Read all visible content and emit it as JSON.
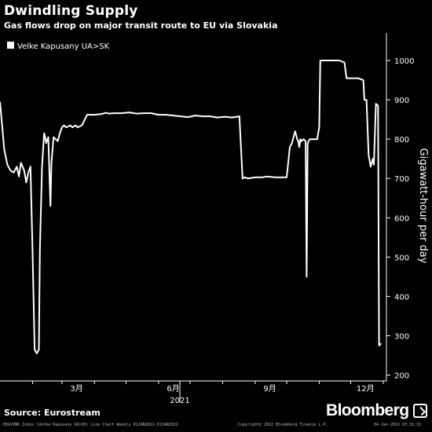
{
  "header": {
    "title": "Dwindling Supply",
    "subtitle": "Gas flows drop on major transit route to EU via Slovakia"
  },
  "footer": {
    "source": "Source: Eurostream",
    "brand": "Bloomberg",
    "fine_left": "EKGVVNK Index (Velke Kapusany UA>SK) Line Chart  Weekly 01JAN2021-01JAN2022",
    "fine_mid": "Copyright© 2022 Bloomberg Finance L.P.",
    "fine_right": "04-Jan-2022 03:31:31"
  },
  "colors": {
    "background": "#000000",
    "line": "#ffffff",
    "text": "#ffffff"
  },
  "chart_data": {
    "type": "line",
    "title": "Dwindling Supply",
    "subtitle": "Gas flows drop on major transit route to EU via Slovakia",
    "ylabel": "Gigawatt-hour per day",
    "xlabel": "",
    "year_label": "2021",
    "x_ticks": [
      "3月",
      "6月",
      "9月",
      "12月"
    ],
    "y_ticks": [
      200,
      300,
      400,
      500,
      600,
      700,
      800,
      900,
      1000
    ],
    "ylim": [
      185,
      1070
    ],
    "xlim": [
      "2021-01-01",
      "2022-01-04"
    ],
    "y_axis_side": "right",
    "grid": false,
    "legend_position": "top-left",
    "series": [
      {
        "name": "Velke Kapusany UA>SK",
        "color": "#ffffff",
        "x": [
          "2021-01-01",
          "2021-01-03",
          "2021-01-05",
          "2021-01-08",
          "2021-01-11",
          "2021-01-14",
          "2021-01-17",
          "2021-01-19",
          "2021-01-21",
          "2021-01-24",
          "2021-01-26",
          "2021-01-28",
          "2021-01-30",
          "2021-02-01",
          "2021-02-03",
          "2021-02-05",
          "2021-02-07",
          "2021-02-08",
          "2021-02-10",
          "2021-02-12",
          "2021-02-13",
          "2021-02-14",
          "2021-02-16",
          "2021-02-18",
          "2021-02-19",
          "2021-02-21",
          "2021-02-23",
          "2021-02-25",
          "2021-02-27",
          "2021-03-01",
          "2021-03-03",
          "2021-03-05",
          "2021-03-09",
          "2021-03-11",
          "2021-03-14",
          "2021-03-16",
          "2021-03-20",
          "2021-03-25",
          "2021-04-01",
          "2021-04-08",
          "2021-04-12",
          "2021-04-14",
          "2021-04-20",
          "2021-04-27",
          "2021-05-04",
          "2021-05-11",
          "2021-05-18",
          "2021-05-25",
          "2021-06-01",
          "2021-06-08",
          "2021-06-15",
          "2021-06-22",
          "2021-06-29",
          "2021-07-06",
          "2021-07-13",
          "2021-07-20",
          "2021-07-27",
          "2021-08-03",
          "2021-08-10",
          "2021-08-17",
          "2021-08-20",
          "2021-08-22",
          "2021-08-25",
          "2021-09-01",
          "2021-09-08",
          "2021-09-12",
          "2021-09-20",
          "2021-09-28",
          "2021-10-01",
          "2021-10-04",
          "2021-10-06",
          "2021-10-09",
          "2021-10-11",
          "2021-10-12",
          "2021-10-13",
          "2021-10-14",
          "2021-10-15",
          "2021-10-17",
          "2021-10-19",
          "2021-10-20",
          "2021-10-21",
          "2021-10-23",
          "2021-10-25",
          "2021-10-30",
          "2021-11-01",
          "2021-11-02",
          "2021-11-05",
          "2021-11-10",
          "2021-11-15",
          "2021-11-20",
          "2021-11-25",
          "2021-11-27",
          "2021-11-29",
          "2021-12-03",
          "2021-12-08",
          "2021-12-13",
          "2021-12-14",
          "2021-12-16",
          "2021-12-18",
          "2021-12-19",
          "2021-12-20",
          "2021-12-22",
          "2021-12-23",
          "2021-12-25",
          "2021-12-27",
          "2021-12-28",
          "2021-12-30"
        ],
        "values": [
          895,
          835,
          775,
          735,
          720,
          715,
          730,
          705,
          740,
          720,
          690,
          715,
          730,
          520,
          265,
          255,
          265,
          520,
          730,
          815,
          805,
          790,
          805,
          630,
          740,
          805,
          800,
          795,
          815,
          830,
          835,
          830,
          835,
          830,
          835,
          830,
          835,
          862,
          862,
          864,
          867,
          865,
          866,
          866,
          868,
          865,
          866,
          866,
          862,
          862,
          860,
          858,
          856,
          860,
          858,
          858,
          855,
          857,
          855,
          858,
          700,
          703,
          700,
          703,
          703,
          705,
          703,
          703,
          703,
          780,
          790,
          820,
          800,
          795,
          780,
          800,
          795,
          800,
          795,
          450,
          790,
          800,
          800,
          800,
          830,
          1000,
          1000,
          1000,
          1000,
          1000,
          995,
          955,
          955,
          955,
          955,
          950,
          900,
          900,
          760,
          745,
          730,
          750,
          735,
          890,
          885,
          275,
          280
        ]
      }
    ]
  }
}
